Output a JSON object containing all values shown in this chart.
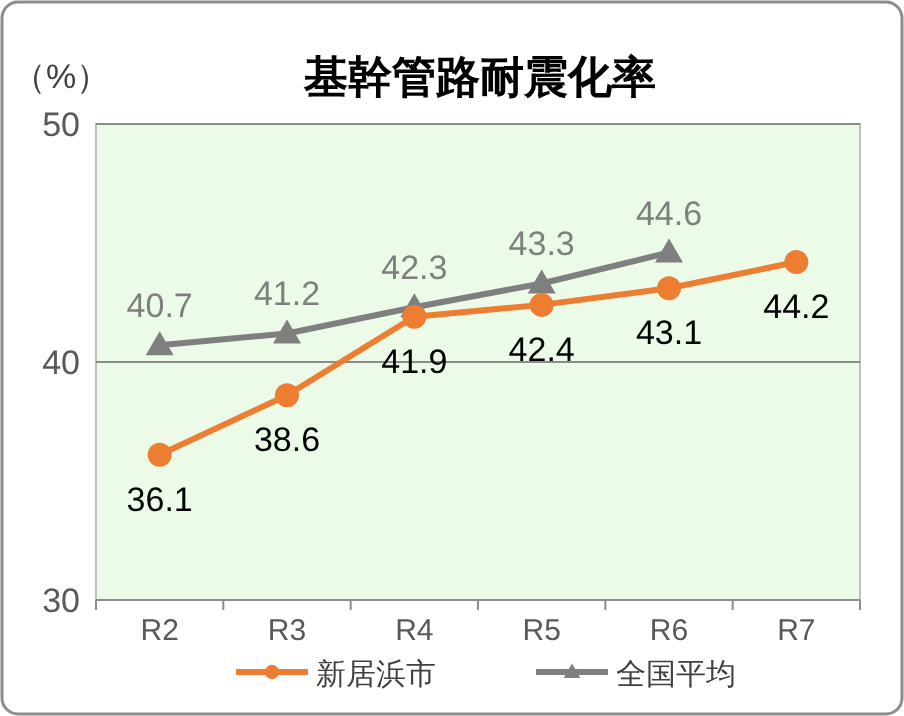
{
  "chart_data": {
    "type": "line",
    "title": "基幹管路耐震化率",
    "ylabel": "（%）",
    "categories": [
      "R2",
      "R3",
      "R4",
      "R5",
      "R6",
      "R7"
    ],
    "series": [
      {
        "name": "新居浜市",
        "color": "#ed7d31",
        "values": [
          36.1,
          38.6,
          41.9,
          42.4,
          43.1,
          44.2
        ],
        "marker": "circle"
      },
      {
        "name": "全国平均",
        "color": "#7f7f7f",
        "values": [
          40.7,
          41.2,
          42.3,
          43.3,
          44.6,
          null
        ],
        "marker": "triangle"
      }
    ],
    "ylim": [
      30,
      50
    ],
    "yticks": [
      30,
      40,
      50
    ],
    "grid": "y",
    "legend": "bottom",
    "data_labels": true
  }
}
